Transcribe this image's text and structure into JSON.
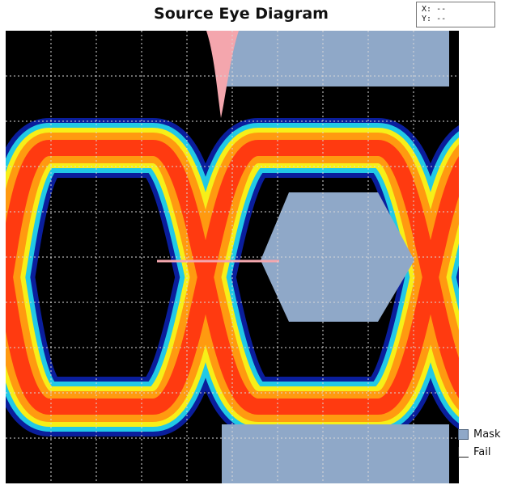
{
  "chart_data": {
    "type": "eye-diagram",
    "title": "Source Eye Diagram",
    "grid": true,
    "legend": {
      "placement": "bottom-right",
      "entries": [
        {
          "name": "Mask",
          "color": "#8fa8c8"
        },
        {
          "name": "Fail",
          "color": "#ffffff"
        }
      ]
    },
    "readout": {
      "x_label": "X:",
      "x_value": "--",
      "y_label": "Y:",
      "y_value": "--"
    },
    "colors": {
      "background": "#000000",
      "density_low": "#0a1e9c",
      "density_mid": "#21c9e6",
      "density_high": "#f7ef18",
      "density_peak": "#ff3a10",
      "mask": "#8fa8c8",
      "jitter_marker": "#f4a6ad"
    }
  }
}
